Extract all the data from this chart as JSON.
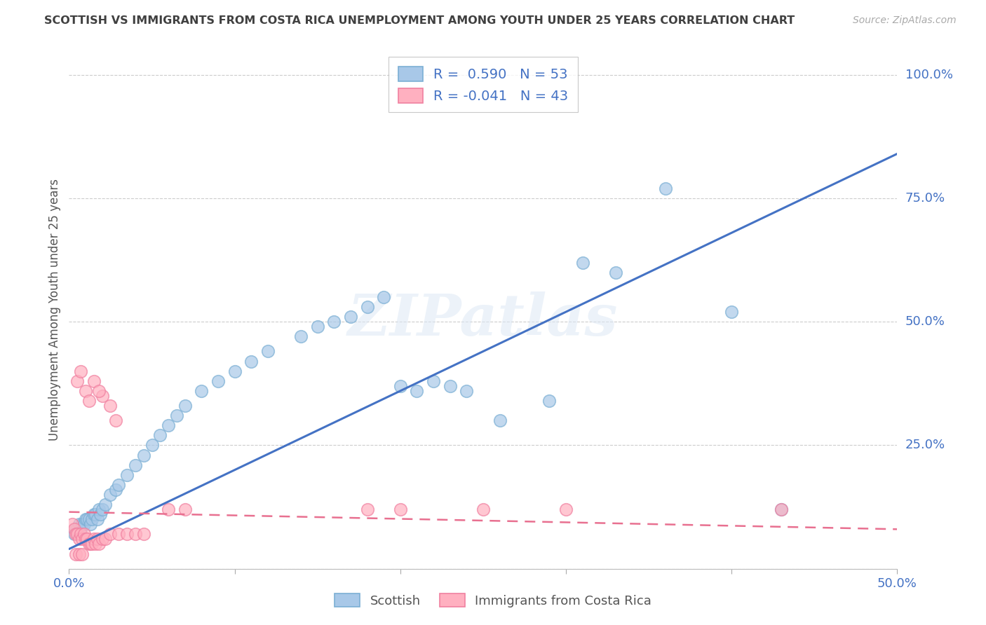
{
  "title": "SCOTTISH VS IMMIGRANTS FROM COSTA RICA UNEMPLOYMENT AMONG YOUTH UNDER 25 YEARS CORRELATION CHART",
  "source": "Source: ZipAtlas.com",
  "ylabel": "Unemployment Among Youth under 25 years",
  "xlim": [
    0,
    0.5
  ],
  "ylim": [
    0.0,
    1.05
  ],
  "blue_R": 0.59,
  "blue_N": 53,
  "pink_R": -0.041,
  "pink_N": 43,
  "blue_color": "#a8c8e8",
  "pink_color": "#ffb0c0",
  "blue_edge_color": "#7bafd4",
  "pink_edge_color": "#f080a0",
  "blue_line_color": "#4472c4",
  "pink_line_color": "#e87090",
  "title_color": "#404040",
  "axis_label_color": "#4472c4",
  "grid_color": "#cccccc",
  "watermark": "ZIPatlas",
  "legend_label1": "R =  0.590   N = 53",
  "legend_label2": "R = -0.041   N = 43",
  "blue_line_x0": 0.0,
  "blue_line_y0": 0.04,
  "blue_line_x1": 0.5,
  "blue_line_y1": 0.84,
  "pink_line_x0": 0.0,
  "pink_line_y0": 0.115,
  "pink_line_x1": 0.5,
  "pink_line_y1": 0.08,
  "blue_x": [
    0.003,
    0.004,
    0.005,
    0.006,
    0.007,
    0.008,
    0.009,
    0.01,
    0.011,
    0.012,
    0.013,
    0.014,
    0.015,
    0.016,
    0.017,
    0.018,
    0.019,
    0.02,
    0.022,
    0.025,
    0.028,
    0.03,
    0.035,
    0.04,
    0.045,
    0.05,
    0.055,
    0.06,
    0.065,
    0.07,
    0.08,
    0.09,
    0.1,
    0.11,
    0.12,
    0.14,
    0.15,
    0.16,
    0.17,
    0.18,
    0.19,
    0.2,
    0.21,
    0.22,
    0.23,
    0.24,
    0.26,
    0.29,
    0.31,
    0.33,
    0.36,
    0.4,
    0.43
  ],
  "blue_y": [
    0.07,
    0.08,
    0.08,
    0.09,
    0.08,
    0.09,
    0.09,
    0.1,
    0.1,
    0.1,
    0.09,
    0.1,
    0.11,
    0.11,
    0.1,
    0.12,
    0.11,
    0.12,
    0.13,
    0.15,
    0.16,
    0.17,
    0.19,
    0.21,
    0.23,
    0.25,
    0.27,
    0.29,
    0.31,
    0.33,
    0.36,
    0.38,
    0.4,
    0.42,
    0.44,
    0.47,
    0.49,
    0.5,
    0.51,
    0.53,
    0.55,
    0.37,
    0.36,
    0.38,
    0.37,
    0.36,
    0.3,
    0.34,
    0.62,
    0.6,
    0.77,
    0.52,
    0.12
  ],
  "pink_x": [
    0.002,
    0.003,
    0.004,
    0.005,
    0.006,
    0.007,
    0.008,
    0.009,
    0.01,
    0.011,
    0.012,
    0.013,
    0.014,
    0.015,
    0.016,
    0.017,
    0.018,
    0.02,
    0.022,
    0.025,
    0.03,
    0.035,
    0.04,
    0.045,
    0.02,
    0.025,
    0.028,
    0.01,
    0.012,
    0.015,
    0.018,
    0.004,
    0.006,
    0.008,
    0.25,
    0.3,
    0.18,
    0.2,
    0.06,
    0.07,
    0.005,
    0.007,
    0.43
  ],
  "pink_y": [
    0.09,
    0.08,
    0.07,
    0.07,
    0.06,
    0.07,
    0.06,
    0.07,
    0.06,
    0.06,
    0.05,
    0.05,
    0.05,
    0.06,
    0.05,
    0.06,
    0.05,
    0.06,
    0.06,
    0.07,
    0.07,
    0.07,
    0.07,
    0.07,
    0.35,
    0.33,
    0.3,
    0.36,
    0.34,
    0.38,
    0.36,
    0.03,
    0.03,
    0.03,
    0.12,
    0.12,
    0.12,
    0.12,
    0.12,
    0.12,
    0.38,
    0.4,
    0.12
  ]
}
